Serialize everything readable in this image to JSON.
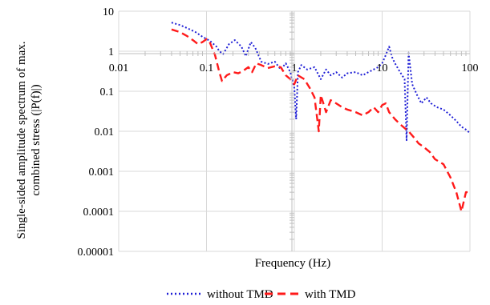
{
  "chart_data": {
    "type": "line",
    "title": "",
    "xlabel": "Frequency (Hz)",
    "ylabel_lines": [
      "Single-sided amplitude spectrum of max.",
      "combined stress (|P(f)|)"
    ],
    "xscale": "log",
    "yscale": "log",
    "xlim": [
      0.01,
      100
    ],
    "ylim": [
      1e-05,
      10
    ],
    "x_tick_labels": [
      "0.01",
      "0.1",
      "1",
      "10",
      "100"
    ],
    "x_tick_values": [
      0.01,
      0.1,
      1,
      10,
      100
    ],
    "y_tick_labels": [
      "10",
      "1",
      "0.1",
      "0.01",
      "0.001",
      "0.0001",
      "0.00001"
    ],
    "y_tick_values": [
      10,
      1,
      0.1,
      0.01,
      0.001,
      0.0001,
      1e-05
    ],
    "grid": true,
    "legend_position": "bottom",
    "series": [
      {
        "name": "without TMD",
        "color": "#1f1fd6",
        "dash": "dotted",
        "points": [
          [
            0.04,
            5.2
          ],
          [
            0.05,
            4.5
          ],
          [
            0.06,
            3.8
          ],
          [
            0.075,
            3.0
          ],
          [
            0.09,
            2.3
          ],
          [
            0.11,
            1.8
          ],
          [
            0.13,
            1.3
          ],
          [
            0.14,
            1.0
          ],
          [
            0.155,
            0.85
          ],
          [
            0.18,
            1.5
          ],
          [
            0.21,
            1.9
          ],
          [
            0.25,
            1.3
          ],
          [
            0.28,
            0.75
          ],
          [
            0.32,
            1.7
          ],
          [
            0.36,
            1.2
          ],
          [
            0.42,
            0.55
          ],
          [
            0.5,
            0.48
          ],
          [
            0.6,
            0.55
          ],
          [
            0.7,
            0.35
          ],
          [
            0.8,
            0.5
          ],
          [
            0.9,
            0.3
          ],
          [
            1.0,
            0.12
          ],
          [
            1.05,
            0.02
          ],
          [
            1.1,
            0.3
          ],
          [
            1.2,
            0.45
          ],
          [
            1.4,
            0.35
          ],
          [
            1.7,
            0.4
          ],
          [
            2.0,
            0.2
          ],
          [
            2.3,
            0.35
          ],
          [
            2.6,
            0.25
          ],
          [
            3.0,
            0.3
          ],
          [
            3.5,
            0.22
          ],
          [
            4.0,
            0.28
          ],
          [
            5.0,
            0.3
          ],
          [
            6.0,
            0.25
          ],
          [
            7.0,
            0.3
          ],
          [
            8.0,
            0.35
          ],
          [
            9.0,
            0.4
          ],
          [
            10.0,
            0.5
          ],
          [
            11.0,
            0.8
          ],
          [
            12.0,
            1.3
          ],
          [
            13.0,
            0.7
          ],
          [
            14.0,
            0.5
          ],
          [
            16.0,
            0.3
          ],
          [
            18.0,
            0.2
          ],
          [
            19.0,
            0.006
          ],
          [
            20.0,
            0.9
          ],
          [
            22.0,
            0.15
          ],
          [
            25.0,
            0.08
          ],
          [
            28.0,
            0.05
          ],
          [
            32.0,
            0.07
          ],
          [
            36.0,
            0.05
          ],
          [
            42.0,
            0.04
          ],
          [
            50.0,
            0.035
          ],
          [
            60.0,
            0.025
          ],
          [
            70.0,
            0.018
          ],
          [
            80.0,
            0.013
          ],
          [
            90.0,
            0.011
          ],
          [
            100.0,
            0.009
          ]
        ]
      },
      {
        "name": "with TMD",
        "color": "#ff1a1a",
        "dash": "dashed",
        "points": [
          [
            0.04,
            3.5
          ],
          [
            0.05,
            3.0
          ],
          [
            0.06,
            2.4
          ],
          [
            0.07,
            1.9
          ],
          [
            0.08,
            1.5
          ],
          [
            0.09,
            1.7
          ],
          [
            0.1,
            2.0
          ],
          [
            0.11,
            1.6
          ],
          [
            0.125,
            0.8
          ],
          [
            0.14,
            0.3
          ],
          [
            0.15,
            0.18
          ],
          [
            0.17,
            0.25
          ],
          [
            0.2,
            0.3
          ],
          [
            0.23,
            0.28
          ],
          [
            0.26,
            0.32
          ],
          [
            0.3,
            0.4
          ],
          [
            0.33,
            0.3
          ],
          [
            0.37,
            0.5
          ],
          [
            0.42,
            0.45
          ],
          [
            0.5,
            0.38
          ],
          [
            0.6,
            0.42
          ],
          [
            0.7,
            0.4
          ],
          [
            0.8,
            0.25
          ],
          [
            0.9,
            0.2
          ],
          [
            1.0,
            0.15
          ],
          [
            1.1,
            0.25
          ],
          [
            1.3,
            0.2
          ],
          [
            1.5,
            0.12
          ],
          [
            1.7,
            0.07
          ],
          [
            1.9,
            0.01
          ],
          [
            2.0,
            0.08
          ],
          [
            2.3,
            0.03
          ],
          [
            2.6,
            0.06
          ],
          [
            3.0,
            0.05
          ],
          [
            3.5,
            0.04
          ],
          [
            4.0,
            0.035
          ],
          [
            5.0,
            0.03
          ],
          [
            6.0,
            0.025
          ],
          [
            7.0,
            0.03
          ],
          [
            8.0,
            0.04
          ],
          [
            9.0,
            0.03
          ],
          [
            10.0,
            0.045
          ],
          [
            11.0,
            0.05
          ],
          [
            12.0,
            0.03
          ],
          [
            14.0,
            0.02
          ],
          [
            16.0,
            0.015
          ],
          [
            18.0,
            0.012
          ],
          [
            20.0,
            0.01
          ],
          [
            23.0,
            0.007
          ],
          [
            26.0,
            0.005
          ],
          [
            30.0,
            0.004
          ],
          [
            35.0,
            0.003
          ],
          [
            40.0,
            0.002
          ],
          [
            50.0,
            0.0015
          ],
          [
            60.0,
            0.0007
          ],
          [
            70.0,
            0.0003
          ],
          [
            80.0,
            0.0001
          ],
          [
            90.0,
            0.0003
          ],
          [
            100.0,
            0.0003
          ]
        ]
      }
    ]
  }
}
